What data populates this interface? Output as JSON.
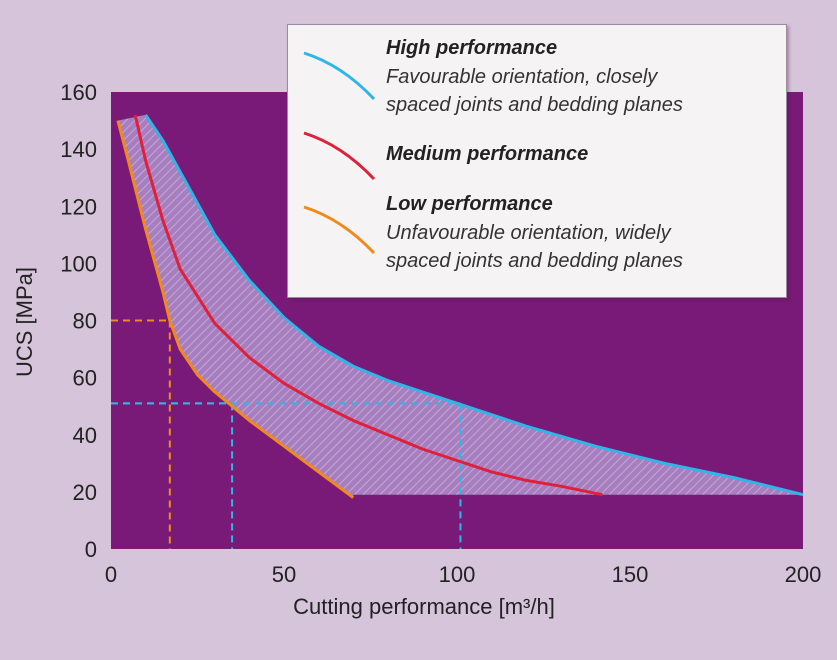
{
  "chart_data": {
    "type": "line",
    "xlabel": "Cutting performance [m³/h]",
    "ylabel": "UCS [MPa]",
    "xlim": [
      0,
      200
    ],
    "ylim": [
      0,
      160
    ],
    "xticks": [
      "0",
      "50",
      "100",
      "150",
      "200"
    ],
    "yticks": [
      "0",
      "20",
      "40",
      "60",
      "80",
      "100",
      "120",
      "140",
      "160"
    ],
    "series": [
      {
        "name": "High performance",
        "description": [
          "Favourable orientation, closely",
          "spaced joints and bedding planes"
        ],
        "color": "#2fb6e8",
        "x": [
          10,
          15,
          20,
          25,
          30,
          40,
          50,
          60,
          70,
          80,
          90,
          100,
          120,
          140,
          160,
          180,
          200
        ],
        "y": [
          152,
          143,
          132,
          121,
          110,
          94,
          81,
          71,
          64,
          59,
          55,
          51,
          43,
          36,
          30,
          25,
          19
        ]
      },
      {
        "name": "Medium performance",
        "color": "#e0203a",
        "x": [
          7,
          10,
          15,
          20,
          30,
          40,
          50,
          60,
          70,
          80,
          90,
          100,
          110,
          120,
          130,
          142
        ],
        "y": [
          152,
          136,
          115,
          98,
          79,
          67,
          58,
          51,
          45,
          40,
          35,
          31,
          27,
          24,
          22,
          19
        ]
      },
      {
        "name": "Low performance",
        "description": [
          "Unfavourable orientation, widely",
          "spaced joints and bedding planes"
        ],
        "color": "#f08a1a",
        "x": [
          2,
          5,
          10,
          15,
          17,
          20,
          25,
          30,
          35,
          40,
          50,
          60,
          70
        ],
        "y": [
          150,
          136,
          112,
          90,
          80,
          70,
          61,
          55,
          50,
          45,
          36,
          27,
          18
        ]
      }
    ],
    "reference_lines": [
      {
        "color": "#f08a1a",
        "x": 17,
        "y": 80
      },
      {
        "color": "#2fb6e8",
        "x": 35,
        "y": 51
      },
      {
        "color": "#2fb6e8",
        "x": 101,
        "y": 51
      }
    ],
    "band_floor_y": 19,
    "legend_position": "top-right",
    "grid": false,
    "colors": {
      "plot_bg": "#7a1a78",
      "band": "#b089c6"
    }
  }
}
